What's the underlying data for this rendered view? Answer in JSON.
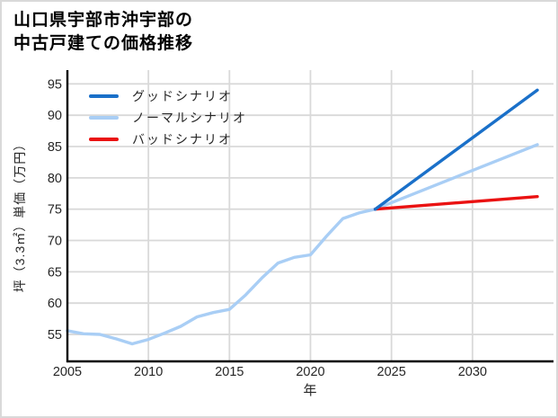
{
  "figure": {
    "title_lines": [
      "山口県宇部市沖宇部の",
      "中古戸建ての価格推移"
    ]
  },
  "chart_data": {
    "type": "line",
    "title": "山口県宇部市沖宇部の中古戸建ての価格推移",
    "xlabel": "年",
    "ylabel": "坪（3.3㎡）単価（万円）",
    "x_ticks": [
      2005,
      2010,
      2015,
      2020,
      2025,
      2030
    ],
    "y_ticks": [
      55,
      60,
      65,
      70,
      75,
      80,
      85,
      90,
      95
    ],
    "xlim": [
      2005,
      2035
    ],
    "ylim": [
      50.7,
      97.2
    ],
    "grid": true,
    "legend_position": "upper-left",
    "colors": {
      "grid": "#d9d9d9",
      "axis": "#000000",
      "tick_text": "#262626",
      "background": "#ffffff"
    },
    "series": [
      {
        "name": "グッドシナリオ",
        "color": "#1a70c9",
        "x": [
          2024,
          2034
        ],
        "values": [
          75,
          94
        ]
      },
      {
        "name": "ノーマルシナリオ",
        "color": "#a9cef5",
        "x": [
          2005,
          2006,
          2007,
          2008,
          2009,
          2010,
          2011,
          2012,
          2013,
          2014,
          2015,
          2016,
          2017,
          2018,
          2019,
          2020,
          2021,
          2022,
          2023,
          2024,
          2034
        ],
        "values": [
          55.6,
          55.1,
          55.0,
          54.3,
          53.5,
          54.2,
          55.2,
          56.3,
          57.8,
          58.5,
          59.0,
          61.3,
          64.0,
          66.4,
          67.3,
          67.7,
          70.7,
          73.5,
          74.4,
          75.0,
          85.3
        ]
      },
      {
        "name": "バッドシナリオ",
        "color": "#ea1212",
        "x": [
          2024,
          2034
        ],
        "values": [
          75,
          77
        ]
      }
    ]
  }
}
